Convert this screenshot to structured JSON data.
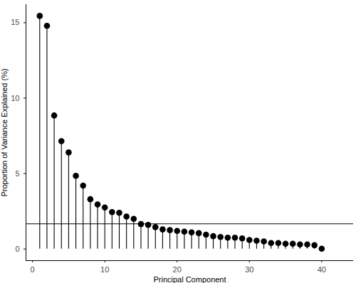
{
  "chart_data": {
    "type": "lollipop",
    "x_label": "Principal Component",
    "y_label": "Proportion of Variance Explained (%)",
    "x": [
      1,
      2,
      3,
      4,
      5,
      6,
      7,
      8,
      9,
      10,
      11,
      12,
      13,
      14,
      15,
      16,
      17,
      18,
      19,
      20,
      21,
      22,
      23,
      24,
      25,
      26,
      27,
      28,
      29,
      30,
      31,
      32,
      33,
      34,
      35,
      36,
      37,
      38,
      39,
      40
    ],
    "values": [
      15.45,
      14.8,
      8.85,
      7.15,
      6.4,
      4.85,
      4.2,
      3.3,
      2.95,
      2.75,
      2.45,
      2.4,
      2.15,
      2.0,
      1.65,
      1.6,
      1.45,
      1.3,
      1.25,
      1.2,
      1.15,
      1.1,
      1.05,
      0.95,
      0.85,
      0.8,
      0.75,
      0.75,
      0.7,
      0.6,
      0.55,
      0.5,
      0.4,
      0.4,
      0.35,
      0.35,
      0.3,
      0.3,
      0.25,
      0.02
    ],
    "color": "#000000",
    "reference_line": 1.67,
    "xlim": [
      -0.9,
      44.4
    ],
    "ylim": [
      -0.77,
      16.2
    ],
    "xticks": [
      0,
      10,
      20,
      30,
      40
    ],
    "yticks": [
      0,
      5,
      10,
      15
    ],
    "grid": false
  }
}
